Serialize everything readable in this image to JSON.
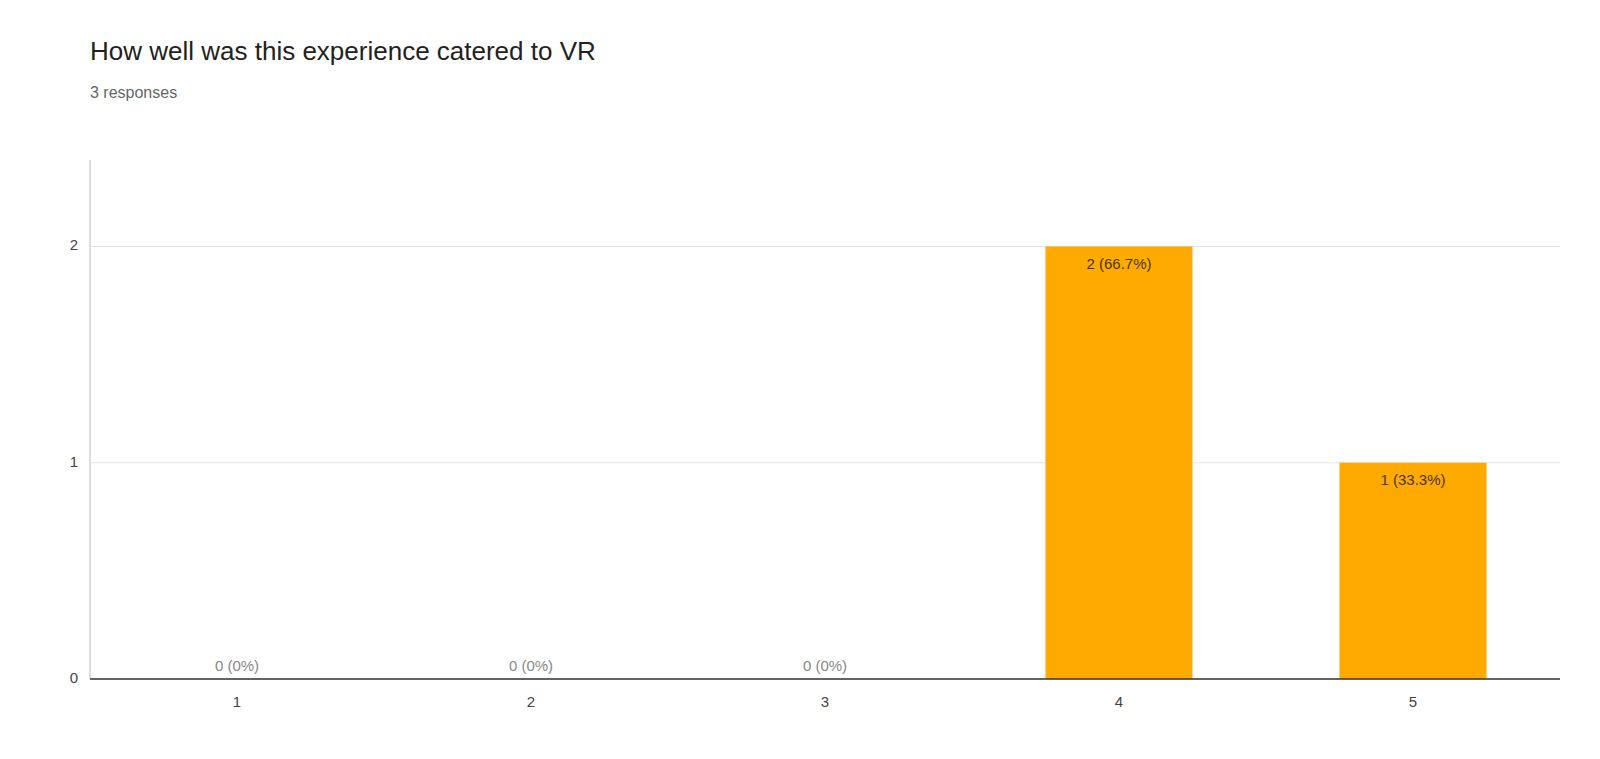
{
  "chart_data": {
    "type": "bar",
    "title": "How well was this experience catered to VR",
    "subtitle": "3 responses",
    "categories": [
      1,
      2,
      3,
      4,
      5
    ],
    "values": [
      0,
      0,
      0,
      2,
      1
    ],
    "value_labels": [
      "0 (0%)",
      "0 (0%)",
      "0 (0%)",
      "2 (66.7%)",
      "1 (33.3%)"
    ],
    "color": "#FFAA00",
    "ylim": [
      0,
      2.4
    ],
    "yticks": [
      0,
      1,
      2
    ],
    "grid": true,
    "data_labels": true
  }
}
